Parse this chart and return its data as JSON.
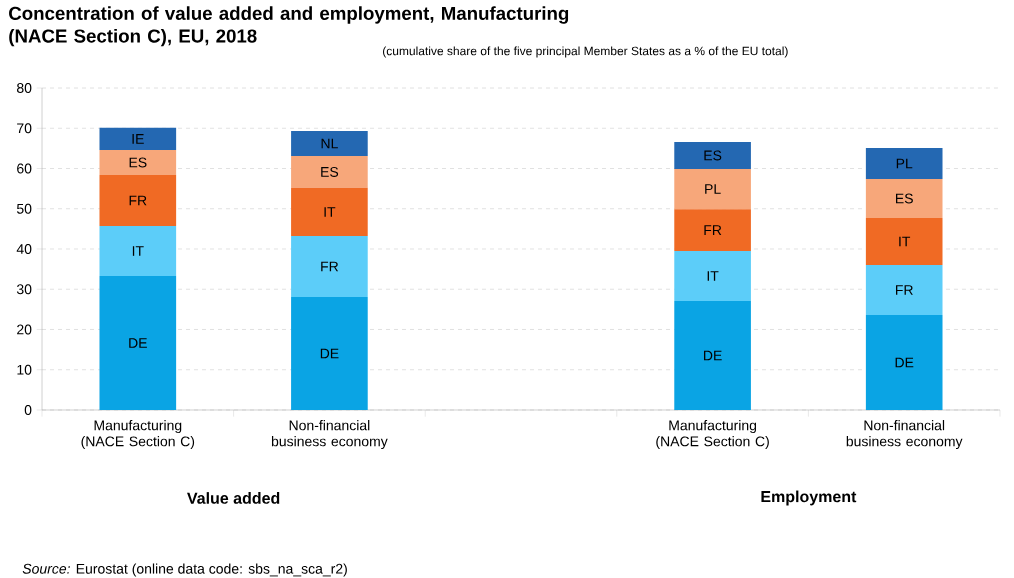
{
  "chart_data": {
    "type": "bar",
    "stacked": true,
    "title": "Concentration of value added and employment, Manufacturing (NACE Section C), EU, 2018",
    "subtitle": "(cumulative share of the five principal Member States as a % of the EU total)",
    "categories": [
      "Manufacturing (NACE Section C)",
      "Non-financial business economy",
      null,
      "Manufacturing (NACE Section C)",
      "Non-financial business economy"
    ],
    "series": [
      {
        "color": "#0aa4e4",
        "values": [
          33.3,
          28.1,
          null,
          27.1,
          23.6
        ],
        "value_labels": [
          "DE",
          "DE",
          null,
          "DE",
          "DE"
        ]
      },
      {
        "color": "#5ccdf9",
        "values": [
          12.4,
          15.1,
          null,
          12.4,
          12.4
        ],
        "value_labels": [
          "IT",
          "FR",
          null,
          "IT",
          "FR"
        ]
      },
      {
        "color": "#f06a24",
        "values": [
          12.7,
          12.0,
          null,
          10.4,
          11.7
        ],
        "value_labels": [
          "FR",
          "IT",
          null,
          "FR",
          "IT"
        ]
      },
      {
        "color": "#f7a77a",
        "values": [
          6.2,
          7.9,
          null,
          10.0,
          9.7
        ],
        "value_labels": [
          "ES",
          "ES",
          null,
          "PL",
          "ES"
        ]
      },
      {
        "color": "#2468b2",
        "values": [
          5.5,
          6.2,
          null,
          6.7,
          7.7
        ],
        "value_labels": [
          "IE",
          "NL",
          null,
          "ES",
          "PL"
        ]
      }
    ],
    "ylim": [
      0,
      80
    ],
    "yticks": [
      0,
      10,
      20,
      30,
      40,
      50,
      60,
      70,
      80
    ],
    "grid": "y",
    "annotations": [
      "Value added",
      "Employment",
      "*Source:* Eurostat (online data code: sbs_na_sca_r2)"
    ]
  }
}
